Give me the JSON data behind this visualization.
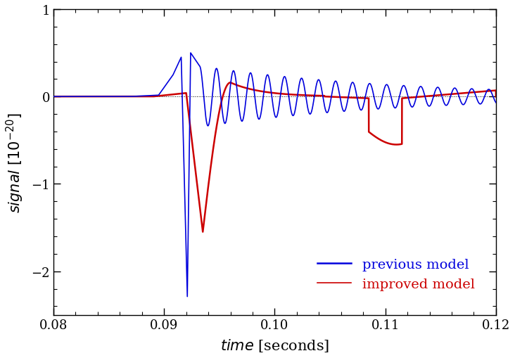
{
  "xlim": [
    0.08,
    0.12
  ],
  "ylim": [
    -2.5,
    1.0
  ],
  "yticks": [
    1.0,
    0.0,
    -1.0,
    -2.0
  ],
  "xticks": [
    0.08,
    0.09,
    0.1,
    0.11,
    0.12
  ],
  "blue_color": "#0000dd",
  "red_color": "#cc0000",
  "blue_label": "improved model",
  "red_label": "previous model",
  "background_color": "#ffffff",
  "t_bounce_blue": 0.0921,
  "t_bounce_red": 0.0922,
  "figsize": [
    7.32,
    5.1
  ],
  "dpi": 100
}
